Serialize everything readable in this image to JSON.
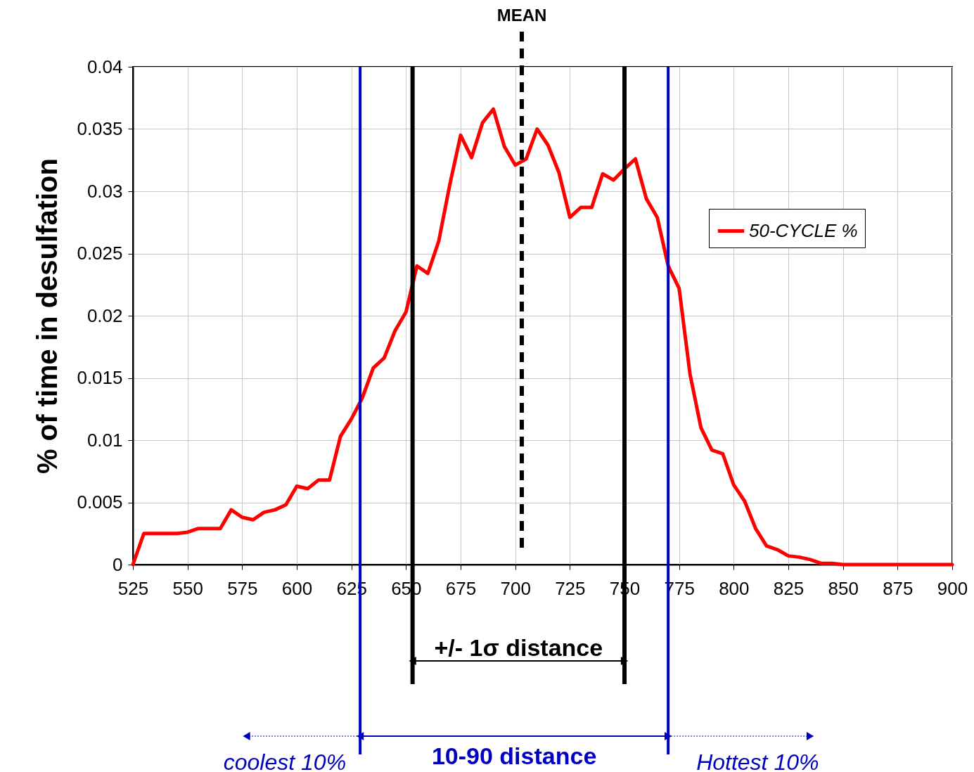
{
  "chart_data": {
    "type": "line",
    "ylabel": "% of time in desulfation",
    "x": [
      525,
      530,
      535,
      540,
      545,
      550,
      555,
      560,
      565,
      570,
      575,
      580,
      585,
      590,
      595,
      600,
      605,
      610,
      615,
      620,
      625,
      630,
      635,
      640,
      645,
      650,
      655,
      660,
      665,
      670,
      675,
      680,
      685,
      690,
      695,
      700,
      705,
      710,
      715,
      720,
      725,
      730,
      735,
      740,
      745,
      750,
      755,
      760,
      765,
      770,
      775,
      780,
      785,
      790,
      795,
      800,
      805,
      810,
      815,
      820,
      825,
      830,
      835,
      840,
      845,
      850,
      855,
      860,
      865,
      870,
      875,
      880,
      885,
      890,
      895,
      900
    ],
    "series": [
      {
        "name": "50-CYCLE %",
        "color": "#ff0000",
        "values": [
          0,
          0.0025,
          0.0025,
          0.0025,
          0.0025,
          0.0026,
          0.0029,
          0.0029,
          0.0029,
          0.0044,
          0.0038,
          0.0036,
          0.0042,
          0.0044,
          0.0048,
          0.0063,
          0.0061,
          0.0068,
          0.0068,
          0.0103,
          0.0117,
          0.0134,
          0.0158,
          0.0166,
          0.0188,
          0.0203,
          0.024,
          0.0234,
          0.026,
          0.0305,
          0.0345,
          0.0327,
          0.0355,
          0.0366,
          0.0336,
          0.0321,
          0.0326,
          0.035,
          0.0337,
          0.0315,
          0.0279,
          0.0287,
          0.0287,
          0.0314,
          0.0309,
          0.0318,
          0.0326,
          0.0294,
          0.0279,
          0.024,
          0.0222,
          0.0153,
          0.011,
          0.0092,
          0.0089,
          0.0064,
          0.0051,
          0.0029,
          0.0015,
          0.0012,
          0.0007,
          0.0006,
          0.0004,
          0.0001,
          0.0001,
          0,
          0,
          0,
          0,
          0,
          0,
          0,
          0,
          0,
          0,
          0
        ]
      }
    ],
    "xlim": [
      525,
      900
    ],
    "xticks": [
      525,
      550,
      575,
      600,
      625,
      650,
      675,
      700,
      725,
      750,
      775,
      800,
      825,
      850,
      875,
      900
    ],
    "ylim": [
      0,
      0.04
    ],
    "yticks": [
      0,
      0.005,
      0.01,
      0.015,
      0.02,
      0.025,
      0.03,
      0.035,
      0.04
    ],
    "grid": true,
    "legend": "right",
    "marker": "none",
    "line_style": "solid",
    "ref_lines": [
      {
        "axis": "x",
        "value": 703,
        "label": "MEAN",
        "color": "#000000",
        "line_style": "dashed"
      },
      {
        "axis": "x",
        "value": 653,
        "color": "#000000",
        "line_style": "solid"
      },
      {
        "axis": "x",
        "value": 750,
        "color": "#000000",
        "line_style": "solid"
      },
      {
        "axis": "x",
        "value": 629,
        "color": "#0000c0",
        "line_style": "solid"
      },
      {
        "axis": "x",
        "value": 770,
        "color": "#0000c0",
        "line_style": "solid"
      }
    ],
    "annotations": [
      "+/- 1σ distance",
      "10-90 distance",
      "coolest 10%",
      "Hottest 10%"
    ]
  }
}
